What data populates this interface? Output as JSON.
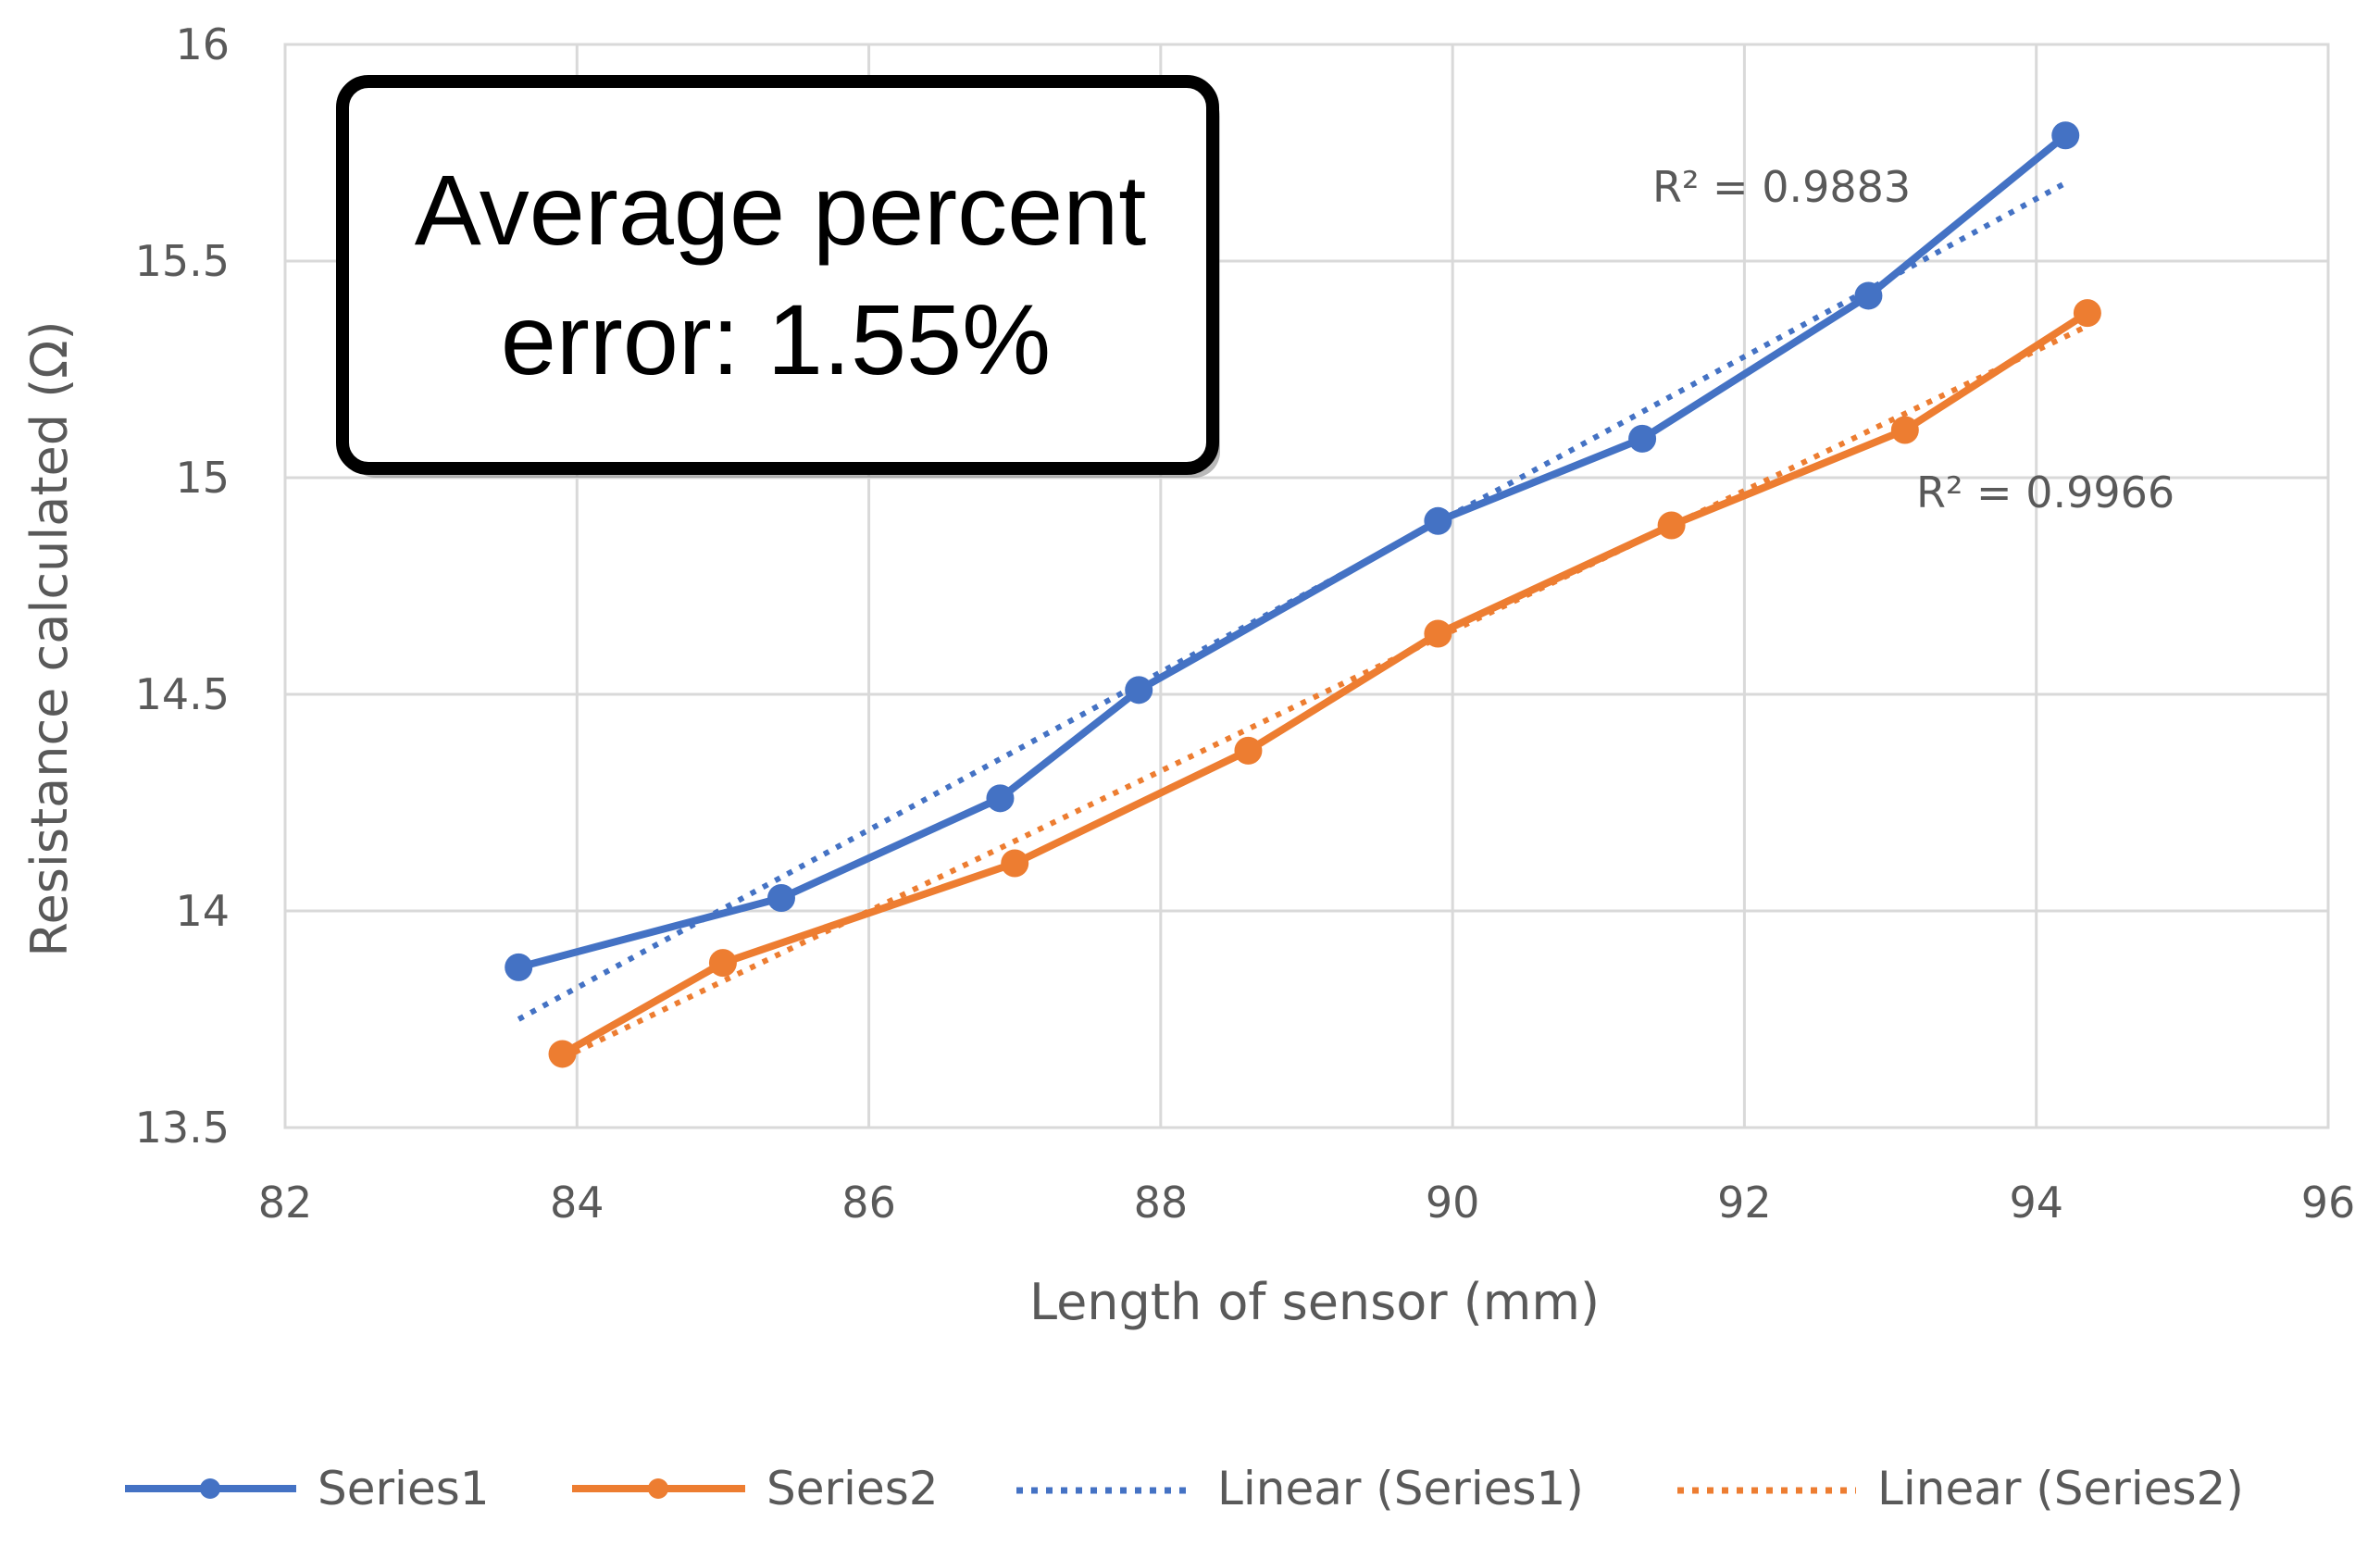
{
  "chart_data": {
    "type": "line",
    "title": "",
    "xlabel": "Length of sensor (mm)",
    "ylabel": "Resistance calculated (Ω)",
    "xlim": [
      82,
      96
    ],
    "ylim": [
      13.5,
      16
    ],
    "x_ticks": [
      "82",
      "84",
      "86",
      "88",
      "90",
      "92",
      "94",
      "96"
    ],
    "y_ticks": [
      "13.5",
      "14",
      "14.5",
      "15",
      "15.5",
      "16"
    ],
    "grid": true,
    "legend_position": "bottom",
    "series": [
      {
        "name": "Series1",
        "color": "#4472C4",
        "points": [
          {
            "x": 83.6,
            "y": 13.87
          },
          {
            "x": 85.4,
            "y": 14.03
          },
          {
            "x": 86.9,
            "y": 14.26
          },
          {
            "x": 87.85,
            "y": 14.51
          },
          {
            "x": 89.9,
            "y": 14.9
          },
          {
            "x": 91.3,
            "y": 15.09
          },
          {
            "x": 92.85,
            "y": 15.42
          },
          {
            "x": 94.2,
            "y": 15.79
          }
        ]
      },
      {
        "name": "Series2",
        "color": "#ED7D31",
        "points": [
          {
            "x": 83.9,
            "y": 13.67
          },
          {
            "x": 85.0,
            "y": 13.88
          },
          {
            "x": 87.0,
            "y": 14.11
          },
          {
            "x": 88.6,
            "y": 14.37
          },
          {
            "x": 89.9,
            "y": 14.64
          },
          {
            "x": 91.5,
            "y": 14.89
          },
          {
            "x": 93.1,
            "y": 15.11
          },
          {
            "x": 94.35,
            "y": 15.38
          }
        ]
      }
    ],
    "trendlines": [
      {
        "name": "Linear (Series1)",
        "series": "Series1",
        "color": "#4472C4",
        "x_range": [
          83.6,
          94.2
        ],
        "y_range": [
          13.75,
          15.68
        ],
        "r_squared": "R² = 0.9883"
      },
      {
        "name": "Linear (Series2)",
        "series": "Series2",
        "color": "#ED7D31",
        "x_range": [
          83.9,
          94.35
        ],
        "y_range": [
          13.66,
          15.35
        ],
        "r_squared": "R² = 0.9966"
      }
    ],
    "annotation": {
      "line1": "Average percent",
      "line2": "error: 1.55%"
    }
  }
}
